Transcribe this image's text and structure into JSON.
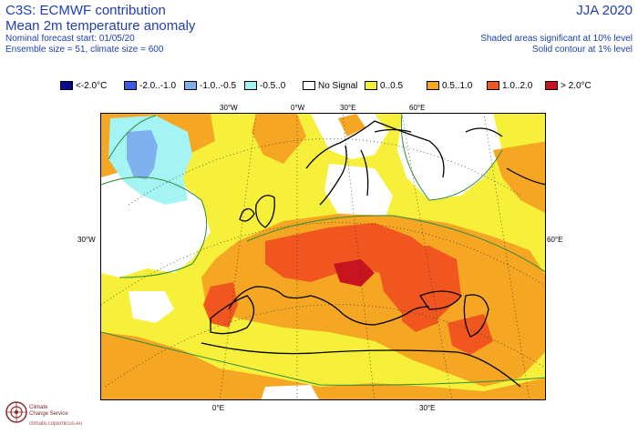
{
  "header": {
    "title1": "C3S: ECMWF contribution",
    "title2": "Mean 2m temperature anomaly",
    "nominal": "Nominal forecast start: 01/05/20",
    "ensemble": "Ensemble size = 51, climate size = 600",
    "period": "JJA 2020",
    "shaded_note": "Shaded areas significant at 10% level",
    "contour_note": "Solid contour at 1% level"
  },
  "legend": [
    {
      "label": "<-2.0°C",
      "color": "#0a0a8c"
    },
    {
      "label": "-2.0..-1.0",
      "color": "#3c5ce6"
    },
    {
      "label": "-1.0..-0.5",
      "color": "#7fb1ee"
    },
    {
      "label": "-0.5..0",
      "color": "#a5f4f4"
    },
    {
      "label": "No Signal",
      "color": "#ffffff"
    },
    {
      "label": "0..0.5",
      "color": "#f7f03a"
    },
    {
      "label": "0.5..1.0",
      "color": "#f5a623"
    },
    {
      "label": "1.0..2.0",
      "color": "#f0561e"
    },
    {
      "label": "> 2.0°C",
      "color": "#c8141e"
    }
  ],
  "map": {
    "graticule_labels": {
      "top_30w": "30°W",
      "top_0w": "0°W",
      "top_30e": "30°E",
      "top_60e": "60°E",
      "left_30w": "30°W",
      "right_60e": "60°E",
      "bottom_0e": "0°E",
      "bottom_30e": "30°E"
    }
  },
  "logo": {
    "line1": "Climate",
    "line2": "Change Service",
    "line3": "climate.copernicus.eu"
  }
}
